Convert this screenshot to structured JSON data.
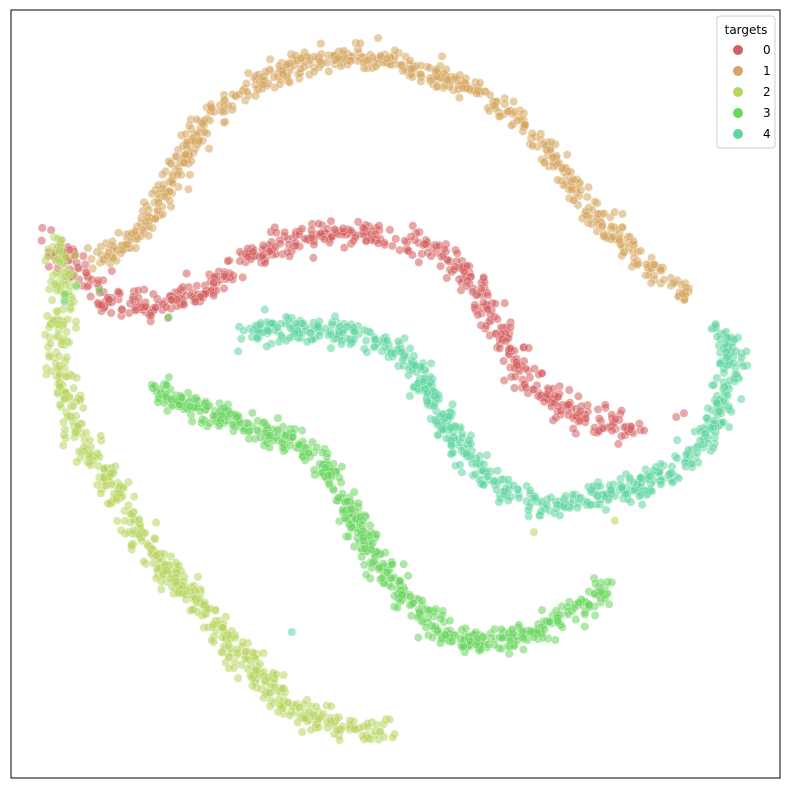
{
  "chart_data": {
    "type": "scatter",
    "title": "",
    "xlabel": "",
    "ylabel": "",
    "xlim": [
      0,
      100
    ],
    "ylim": [
      0,
      100
    ],
    "grid": false,
    "ticks": false,
    "legend": {
      "title": "targets",
      "placement": "top-right"
    },
    "series": [
      {
        "name": "0",
        "color": "#d65f5f",
        "path": [
          [
            5,
            70.5
          ],
          [
            9,
            65.5
          ],
          [
            13,
            62
          ],
          [
            18,
            61.5
          ],
          [
            24,
            63
          ],
          [
            30,
            67
          ],
          [
            36,
            70
          ],
          [
            42,
            71
          ],
          [
            48,
            70.5
          ],
          [
            54,
            69
          ],
          [
            58,
            67
          ],
          [
            61,
            63
          ],
          [
            64,
            58
          ],
          [
            66,
            53.5
          ],
          [
            68,
            50.5
          ],
          [
            72,
            48
          ],
          [
            77,
            46
          ],
          [
            82,
            45.5
          ]
        ],
        "count": 600,
        "spread": 0.9,
        "outliers": [
          [
            86.5,
            47
          ],
          [
            87.5,
            47.5
          ],
          [
            62,
            61
          ],
          [
            24,
            62
          ]
        ]
      },
      {
        "name": "1",
        "color": "#d6a55f",
        "path": [
          [
            11,
            67.5
          ],
          [
            15,
            69.5
          ],
          [
            19,
            74
          ],
          [
            22,
            80
          ],
          [
            25,
            85
          ],
          [
            28,
            88
          ],
          [
            31,
            90
          ],
          [
            35,
            92
          ],
          [
            40,
            93.5
          ],
          [
            45,
            94
          ],
          [
            51,
            93
          ],
          [
            56,
            91
          ],
          [
            61,
            89
          ],
          [
            65,
            86.5
          ],
          [
            69,
            82.5
          ],
          [
            72,
            78.5
          ],
          [
            75,
            74.5
          ],
          [
            78,
            71
          ],
          [
            81,
            68.5
          ],
          [
            85,
            65
          ],
          [
            89,
            62.5
          ]
        ],
        "count": 650,
        "spread": 0.8,
        "outliers": [
          [
            6.5,
            70
          ],
          [
            10,
            69
          ],
          [
            12.5,
            68
          ]
        ]
      },
      {
        "name": "2",
        "color": "#b6d65f",
        "path": [
          [
            6,
            69.5
          ],
          [
            7,
            65
          ],
          [
            6.5,
            60
          ],
          [
            6,
            55
          ],
          [
            7.5,
            48
          ],
          [
            10.5,
            42
          ],
          [
            13.5,
            37.5
          ],
          [
            16.5,
            32
          ],
          [
            19,
            28.5
          ],
          [
            22.5,
            24.5
          ],
          [
            26,
            21
          ],
          [
            29,
            17
          ],
          [
            32,
            13.5
          ],
          [
            35,
            10.5
          ],
          [
            38,
            8.5
          ],
          [
            41,
            7.5
          ],
          [
            44,
            6.5
          ],
          [
            49,
            6
          ]
        ],
        "count": 600,
        "spread": 0.9,
        "outliers": [
          [
            68,
            32
          ],
          [
            78.5,
            33.5
          ]
        ]
      },
      {
        "name": "3",
        "color": "#6ad65f",
        "path": [
          [
            19,
            50.5
          ],
          [
            22,
            49
          ],
          [
            26,
            47.5
          ],
          [
            30,
            46
          ],
          [
            34,
            45
          ],
          [
            38,
            43
          ],
          [
            41,
            40
          ],
          [
            43,
            36
          ],
          [
            45.5,
            32
          ],
          [
            48,
            28
          ],
          [
            50.5,
            24.5
          ],
          [
            53,
            22
          ],
          [
            56,
            19
          ],
          [
            60,
            17.5
          ],
          [
            64,
            18
          ],
          [
            68,
            19
          ],
          [
            72,
            21
          ],
          [
            75,
            23
          ],
          [
            77.5,
            25
          ]
        ],
        "count": 600,
        "spread": 0.85,
        "outliers": [
          [
            7,
            63
          ],
          [
            8.5,
            64
          ],
          [
            11.5,
            63.5
          ],
          [
            20.5,
            60
          ]
        ]
      },
      {
        "name": "4",
        "color": "#5fd69e",
        "path": [
          [
            30,
            57.5
          ],
          [
            34,
            58.5
          ],
          [
            38,
            58.5
          ],
          [
            42,
            58
          ],
          [
            46,
            57.5
          ],
          [
            50,
            56
          ],
          [
            53,
            53
          ],
          [
            55,
            49
          ],
          [
            57,
            45
          ],
          [
            60,
            41
          ],
          [
            63,
            38
          ],
          [
            66,
            36.5
          ],
          [
            70,
            35.5
          ],
          [
            74,
            36
          ],
          [
            78,
            37
          ],
          [
            82,
            38
          ],
          [
            86,
            40
          ],
          [
            89,
            42.5
          ],
          [
            91.5,
            46.5
          ],
          [
            93.5,
            52
          ],
          [
            93.5,
            55.5
          ],
          [
            92,
            58.5
          ]
        ],
        "count": 650,
        "spread": 0.85,
        "outliers": [
          [
            33,
            61
          ],
          [
            7,
            62
          ],
          [
            36.5,
            19
          ]
        ]
      }
    ]
  }
}
